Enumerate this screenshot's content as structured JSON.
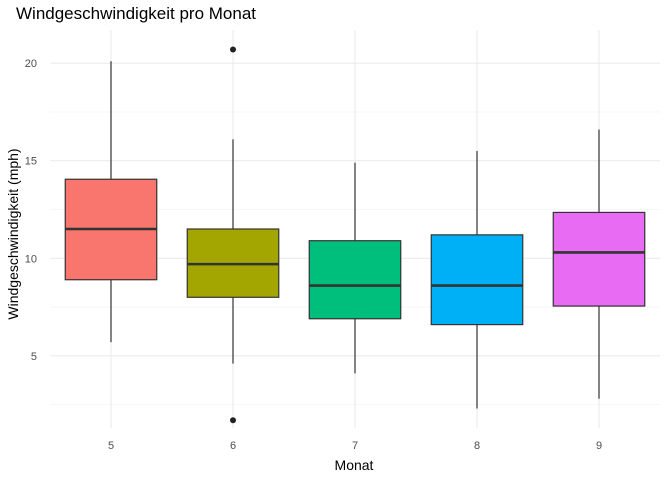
{
  "chart_data": {
    "type": "boxplot",
    "title": "Windgeschwindigkeit pro Monat",
    "xlabel": "Monat",
    "ylabel": "Windgeschwindigkeit (mph)",
    "categories": [
      "5",
      "6",
      "7",
      "8",
      "9"
    ],
    "yticks": [
      5,
      10,
      15,
      20
    ],
    "ylim": [
      1.3,
      21.7
    ],
    "grid": true,
    "legend": "none",
    "boxes": [
      {
        "category": "5",
        "color": "#F8766D",
        "min": 5.7,
        "q1": 8.9,
        "median": 11.5,
        "q3": 14.05,
        "max": 20.1,
        "outliers": []
      },
      {
        "category": "6",
        "color": "#A3A500",
        "min": 4.6,
        "q1": 8.0,
        "median": 9.7,
        "q3": 11.5,
        "max": 16.1,
        "outliers": [
          20.7,
          1.7
        ]
      },
      {
        "category": "7",
        "color": "#00BF7D",
        "min": 4.1,
        "q1": 6.9,
        "median": 8.6,
        "q3": 10.9,
        "max": 14.9,
        "outliers": []
      },
      {
        "category": "8",
        "color": "#00B0F6",
        "min": 2.3,
        "q1": 6.6,
        "median": 8.6,
        "q3": 11.2,
        "max": 15.5,
        "outliers": []
      },
      {
        "category": "9",
        "color": "#E76BF3",
        "min": 2.8,
        "q1": 7.55,
        "median": 10.3,
        "q3": 12.35,
        "max": 16.6,
        "outliers": []
      }
    ]
  }
}
